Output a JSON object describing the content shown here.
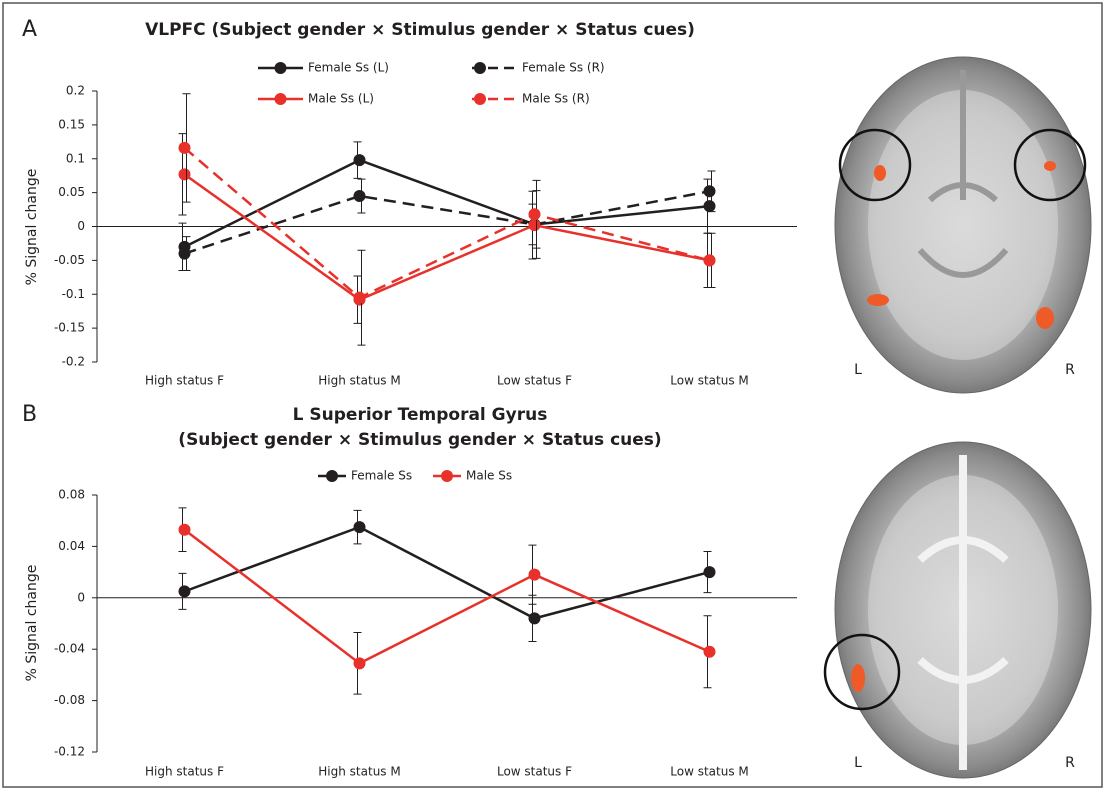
{
  "chart_data": [
    {
      "type": "line",
      "panel_label": "A",
      "title": "VLPFC (Subject gender × Stimulus gender × Status cues)",
      "ylabel": "% Signal change",
      "categories": [
        "High status F",
        "High status M",
        "Low status F",
        "Low status M"
      ],
      "ylim": [
        -0.2,
        0.2
      ],
      "yticks": [
        -0.2,
        -0.15,
        -0.1,
        -0.05,
        0,
        0.05,
        0.1,
        0.15,
        0.2
      ],
      "series": [
        {
          "name": "Female Ss (L)",
          "color": "#231f20",
          "dashed": false,
          "values": [
            -0.03,
            0.098,
            0.003,
            0.03
          ],
          "errors": [
            0.035,
            0.027,
            0.03,
            0.04
          ]
        },
        {
          "name": "Female Ss (R)",
          "color": "#231f20",
          "dashed": true,
          "values": [
            -0.04,
            0.045,
            0.003,
            0.052
          ],
          "errors": [
            0.025,
            0.025,
            0.05,
            0.03
          ]
        },
        {
          "name": "Male Ss (L)",
          "color": "#e8312a",
          "dashed": false,
          "values": [
            0.077,
            -0.108,
            0.002,
            -0.05
          ],
          "errors": [
            0.06,
            0.035,
            0.05,
            0.04
          ]
        },
        {
          "name": "Male Ss (R)",
          "color": "#e8312a",
          "dashed": true,
          "values": [
            0.116,
            -0.105,
            0.018,
            -0.05
          ],
          "errors": [
            0.08,
            0.07,
            0.05,
            0.04
          ]
        }
      ],
      "image_labels": [
        "L",
        "R"
      ]
    },
    {
      "type": "line",
      "panel_label": "B",
      "title": "L Superior Temporal Gyrus",
      "subtitle": "(Subject gender × Stimulus gender × Status cues)",
      "ylabel": "% Signal change",
      "categories": [
        "High status F",
        "High status M",
        "Low status F",
        "Low status M"
      ],
      "ylim": [
        -0.12,
        0.08
      ],
      "yticks": [
        -0.12,
        -0.08,
        -0.04,
        0,
        0.04,
        0.08
      ],
      "series": [
        {
          "name": "Female Ss",
          "color": "#231f20",
          "dashed": false,
          "values": [
            0.005,
            0.055,
            -0.016,
            0.02
          ],
          "errors": [
            0.014,
            0.013,
            0.018,
            0.016
          ]
        },
        {
          "name": "Male Ss",
          "color": "#e8312a",
          "dashed": false,
          "values": [
            0.053,
            -0.051,
            0.018,
            -0.042
          ],
          "errors": [
            0.017,
            0.024,
            0.023,
            0.028
          ]
        }
      ],
      "image_labels": [
        "L",
        "R"
      ]
    }
  ]
}
